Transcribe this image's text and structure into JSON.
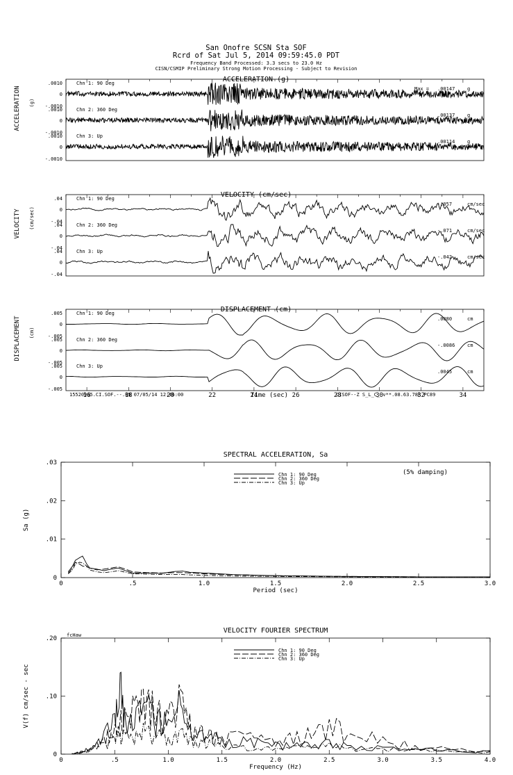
{
  "header": {
    "line1": "San Onofre     SCSN Sta SOF",
    "line2": "Rcrd of Sat Jul  5, 2014 09:59:45.0 PDT",
    "line3": "Frequency Band Processed: 3.3 secs to 23.0 Hz",
    "line4": "CISN/CSMIP Preliminary Strong Motion Processing - Subject to Revision"
  },
  "footer": {
    "left": "15520985.CI.SOF.--.HN 07/05/14 12:46:00",
    "right": "CISOF--Z  S_L_C_  v**.08.63.78R PC89"
  },
  "chart_data": [
    {
      "type": "line",
      "title": "ACCELERATION (g)",
      "side_label": "ACCELERATION",
      "unit_label": "(g)",
      "x_label": "",
      "traces": [
        {
          "name": "Chn 1: 90 Deg",
          "max_label": "Max =",
          "max_value": ".00147",
          "max_unit": "g",
          "ticks": [
            ".0010",
            "0",
            "-.0010"
          ]
        },
        {
          "name": "Chn 2: 360 Deg",
          "max_label": "",
          "max_value": ".00137",
          "max_unit": "g",
          "ticks": [
            ".0010",
            "0",
            "-.0010"
          ]
        },
        {
          "name": "Chn 3: Up",
          "max_label": "",
          "max_value": ".00114",
          "max_unit": "g",
          "ticks": [
            ".0010",
            "0",
            "-.0010"
          ]
        }
      ],
      "xlim": [
        15,
        35
      ],
      "ylim": [
        -0.001,
        0.001
      ]
    },
    {
      "type": "line",
      "title": "VELOCITY (cm/sec)",
      "side_label": "VELOCITY",
      "unit_label": "(cm/sec)",
      "traces": [
        {
          "name": "Chn 1: 90 Deg",
          "max_value": "-.057",
          "max_unit": "cm/sec",
          "ticks": [
            ".04",
            "0",
            "-.04"
          ]
        },
        {
          "name": "Chn 2: 360 Deg",
          "max_value": "-.071",
          "max_unit": "cm/sec",
          "ticks": [
            ".04",
            "0",
            "-.04"
          ]
        },
        {
          "name": "Chn 3: Up",
          "max_value": "-.042",
          "max_unit": "cm/sec",
          "ticks": [
            ".04",
            "0",
            "-.04"
          ]
        }
      ],
      "xlim": [
        15,
        35
      ],
      "ylim": [
        -0.04,
        0.04
      ]
    },
    {
      "type": "line",
      "title": "DISPLACEMENT (cm)",
      "side_label": "DISPLACEMENT",
      "unit_label": "(cm)",
      "x_label": "Time (sec)",
      "x_ticks": [
        "16",
        "18",
        "20",
        "22",
        "24",
        "26",
        "28",
        "30",
        "32",
        "34"
      ],
      "traces": [
        {
          "name": "Chn 1: 90 Deg",
          "max_value": ".0080",
          "max_unit": "cm",
          "ticks": [
            ".005",
            "0",
            "-.005"
          ]
        },
        {
          "name": "Chn 2: 360 Deg",
          "max_value": "-.0086",
          "max_unit": "cm",
          "ticks": [
            ".005",
            "0",
            "-.005"
          ]
        },
        {
          "name": "Chn 3: Up",
          "max_value": ".0045",
          "max_unit": "cm",
          "ticks": [
            ".005",
            "0",
            "-.005"
          ]
        }
      ],
      "xlim": [
        15,
        35
      ],
      "ylim": [
        -0.005,
        0.005
      ]
    },
    {
      "type": "line",
      "title": "SPECTRAL ACCELERATION, Sa",
      "annotation": "(5% damping)",
      "xlabel": "Period (sec)",
      "ylabel": "Sa (g)",
      "x_ticks": [
        "0",
        ".5",
        "1.0",
        "1.5",
        "2.0",
        "2.5",
        "3.0"
      ],
      "y_ticks": [
        "0",
        ".01",
        ".02",
        ".03"
      ],
      "xlim": [
        0,
        3.0
      ],
      "ylim": [
        0,
        0.03
      ],
      "legend": "top-center",
      "series": [
        {
          "name": "Chn 1: 90 Deg",
          "x": [
            0.05,
            0.08,
            0.1,
            0.13,
            0.15,
            0.18,
            0.2,
            0.25,
            0.3,
            0.35,
            0.4,
            0.45,
            0.5,
            0.6,
            0.7,
            0.8,
            0.85,
            0.9,
            1.0,
            1.2,
            1.5,
            2.0,
            2.5,
            3.0
          ],
          "values": [
            0.0015,
            0.003,
            0.0045,
            0.0052,
            0.0056,
            0.0035,
            0.0025,
            0.0022,
            0.0018,
            0.0022,
            0.0025,
            0.0018,
            0.0012,
            0.0012,
            0.0011,
            0.0016,
            0.0017,
            0.0014,
            0.0012,
            0.0008,
            0.0005,
            0.0003,
            0.0002,
            0.0002
          ]
        },
        {
          "name": "Chn 2: 360 Deg",
          "x": [
            0.05,
            0.08,
            0.1,
            0.13,
            0.15,
            0.18,
            0.2,
            0.25,
            0.3,
            0.35,
            0.4,
            0.45,
            0.5,
            0.6,
            0.7,
            0.8,
            0.85,
            0.9,
            1.0,
            1.2,
            1.5,
            2.0,
            2.5,
            3.0
          ],
          "values": [
            0.0012,
            0.0025,
            0.004,
            0.0035,
            0.003,
            0.0028,
            0.0025,
            0.002,
            0.0022,
            0.0025,
            0.0028,
            0.0022,
            0.0015,
            0.0013,
            0.0012,
            0.0013,
            0.0013,
            0.0012,
            0.001,
            0.0007,
            0.0005,
            0.0003,
            0.0002,
            0.0002
          ]
        },
        {
          "name": "Chn 3: Up",
          "x": [
            0.05,
            0.08,
            0.1,
            0.13,
            0.15,
            0.18,
            0.2,
            0.25,
            0.3,
            0.35,
            0.4,
            0.45,
            0.5,
            0.6,
            0.7,
            0.8,
            0.85,
            0.9,
            1.0,
            1.2,
            1.5,
            2.0,
            2.5,
            3.0
          ],
          "values": [
            0.001,
            0.002,
            0.0035,
            0.004,
            0.0038,
            0.003,
            0.002,
            0.0015,
            0.0013,
            0.0015,
            0.0018,
            0.0014,
            0.001,
            0.0009,
            0.0008,
            0.0008,
            0.0008,
            0.0007,
            0.0006,
            0.0004,
            0.0003,
            0.0002,
            0.0001,
            0.0001
          ]
        }
      ]
    },
    {
      "type": "line",
      "title": "VELOCITY FOURIER SPECTRUM",
      "corner_label": "fcHaw",
      "xlabel": "Frequency (Hz)",
      "ylabel": "V(f)   cm/sec - sec",
      "x_ticks": [
        "0",
        ".5",
        "1.0",
        "1.5",
        "2.0",
        "2.5",
        "3.0",
        "3.5",
        "4.0"
      ],
      "y_ticks": [
        "0",
        ".10",
        ".20"
      ],
      "xlim": [
        0,
        4.0
      ],
      "ylim": [
        0,
        0.2
      ],
      "legend": "top-center",
      "series": [
        {
          "name": "Chn 1: 90 Deg",
          "x": [
            0.1,
            0.2,
            0.3,
            0.4,
            0.5,
            0.55,
            0.6,
            0.7,
            0.8,
            0.9,
            1.0,
            1.1,
            1.2,
            1.3,
            1.4,
            1.5,
            1.7,
            1.9,
            2.1,
            2.3,
            2.5,
            2.7,
            3.0,
            3.3,
            3.6,
            4.0
          ],
          "values": [
            0.001,
            0.005,
            0.015,
            0.04,
            0.07,
            0.14,
            0.06,
            0.08,
            0.09,
            0.07,
            0.06,
            0.11,
            0.05,
            0.04,
            0.035,
            0.025,
            0.03,
            0.02,
            0.02,
            0.02,
            0.025,
            0.015,
            0.012,
            0.01,
            0.008,
            0.005
          ]
        },
        {
          "name": "Chn 2: 360 Deg",
          "x": [
            0.1,
            0.2,
            0.3,
            0.4,
            0.5,
            0.55,
            0.6,
            0.7,
            0.8,
            0.9,
            1.0,
            1.1,
            1.2,
            1.3,
            1.4,
            1.5,
            1.7,
            1.9,
            2.1,
            2.3,
            2.5,
            2.7,
            3.0,
            3.3,
            3.6,
            4.0
          ],
          "values": [
            0.001,
            0.004,
            0.012,
            0.03,
            0.05,
            0.06,
            0.075,
            0.1,
            0.1,
            0.08,
            0.07,
            0.12,
            0.07,
            0.05,
            0.04,
            0.03,
            0.035,
            0.025,
            0.03,
            0.045,
            0.06,
            0.035,
            0.03,
            0.015,
            0.01,
            0.006
          ]
        },
        {
          "name": "Chn 3: Up",
          "x": [
            0.1,
            0.2,
            0.3,
            0.4,
            0.5,
            0.55,
            0.6,
            0.7,
            0.8,
            0.9,
            1.0,
            1.1,
            1.2,
            1.3,
            1.4,
            1.5,
            1.7,
            1.9,
            2.1,
            2.3,
            2.5,
            2.7,
            3.0,
            3.3,
            3.6,
            4.0
          ],
          "values": [
            0.001,
            0.003,
            0.01,
            0.02,
            0.03,
            0.04,
            0.035,
            0.04,
            0.045,
            0.035,
            0.03,
            0.04,
            0.03,
            0.025,
            0.02,
            0.015,
            0.015,
            0.012,
            0.012,
            0.015,
            0.02,
            0.012,
            0.01,
            0.008,
            0.006,
            0.004
          ]
        }
      ]
    }
  ]
}
